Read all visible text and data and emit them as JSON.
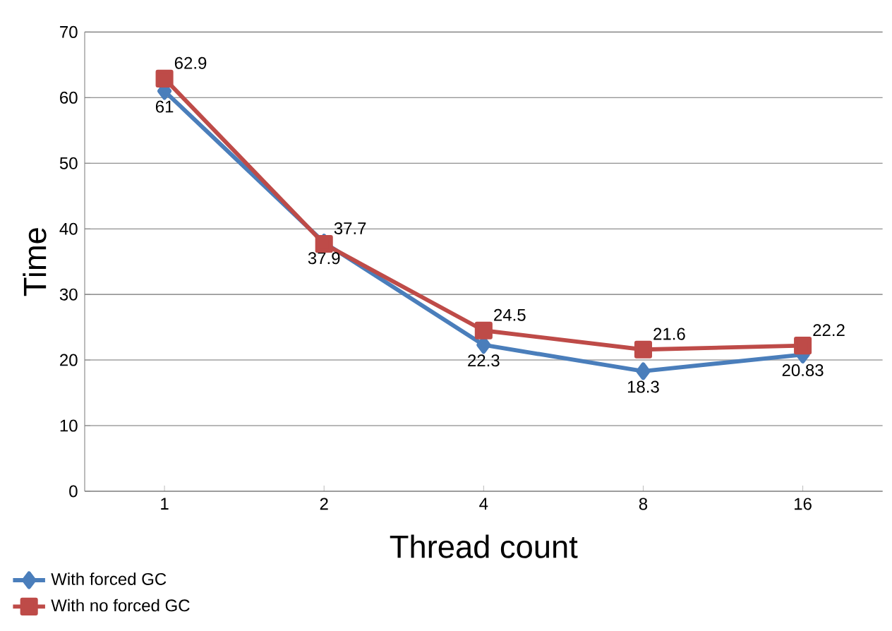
{
  "chart_data": {
    "type": "line",
    "xlabel": "Thread count",
    "ylabel": "Time",
    "categories": [
      "1",
      "2",
      "4",
      "8",
      "16"
    ],
    "series": [
      {
        "name": "With forced GC",
        "color": "#4a7ebb",
        "marker": "diamond",
        "values": [
          61,
          37.9,
          22.3,
          18.3,
          20.83
        ]
      },
      {
        "name": "With no forced GC",
        "color": "#be4b48",
        "marker": "square",
        "values": [
          62.9,
          37.7,
          24.5,
          21.6,
          22.2
        ]
      }
    ],
    "ylim": [
      0,
      70
    ],
    "yticks": [
      0,
      10,
      20,
      30,
      40,
      50,
      60,
      70
    ],
    "grid": "y",
    "legend": "bottom left",
    "data_labels": true
  }
}
